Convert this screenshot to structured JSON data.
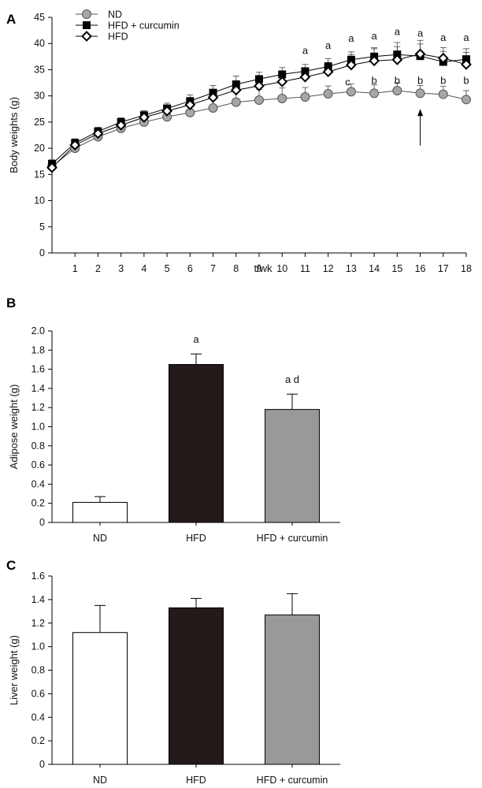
{
  "figure": {
    "panels": [
      "A",
      "B",
      "C"
    ]
  },
  "chart_data": [
    {
      "id": "A",
      "type": "line",
      "title": "",
      "xlabel": "t/wk",
      "ylabel": "Body weights (g)",
      "xlim": [
        0,
        18
      ],
      "ylim": [
        0,
        45
      ],
      "xticks": [
        1,
        2,
        3,
        4,
        5,
        6,
        7,
        8,
        9,
        10,
        11,
        12,
        13,
        14,
        15,
        16,
        17,
        18
      ],
      "yticks": [
        0,
        5,
        10,
        15,
        20,
        25,
        30,
        35,
        40,
        45
      ],
      "x": [
        0,
        1,
        2,
        3,
        4,
        5,
        6,
        7,
        8,
        9,
        10,
        11,
        12,
        13,
        14,
        15,
        16,
        17,
        18
      ],
      "legend": {
        "placement": "top-left"
      },
      "series": [
        {
          "name": "ND",
          "marker": "circle",
          "color": "#a6a6a6",
          "values": [
            16.5,
            20.0,
            22.2,
            23.8,
            25.0,
            26.0,
            26.8,
            27.7,
            28.8,
            29.2,
            29.5,
            29.8,
            30.4,
            30.8,
            30.5,
            31.0,
            30.5,
            30.3,
            29.3
          ],
          "errors": [
            1.0,
            1.5,
            1.4,
            1.4,
            1.6,
            1.6,
            1.6,
            1.8,
            2.0,
            2.0,
            2.0,
            1.8,
            1.5,
            1.5,
            1.6,
            1.5,
            1.5,
            1.5,
            1.7
          ]
        },
        {
          "name": "HFD + curcumin",
          "marker": "square",
          "color": "#000000",
          "values": [
            17.0,
            21.0,
            23.2,
            25.0,
            26.3,
            27.6,
            29.0,
            30.6,
            32.2,
            33.2,
            34.1,
            34.7,
            35.6,
            36.9,
            37.5,
            37.9,
            37.6,
            36.5,
            37.0
          ],
          "errors": [
            0.8,
            0.8,
            0.8,
            0.8,
            0.9,
            1.0,
            1.2,
            1.4,
            1.6,
            1.3,
            1.3,
            1.3,
            1.5,
            1.5,
            1.7,
            2.3,
            2.3,
            2.0,
            2.0
          ]
        },
        {
          "name": "HFD",
          "marker": "diamond",
          "color": "#000000",
          "values": [
            16.3,
            20.6,
            22.8,
            24.4,
            25.9,
            27.1,
            28.3,
            29.7,
            31.1,
            31.9,
            32.7,
            33.6,
            34.6,
            35.9,
            36.7,
            36.9,
            38.0,
            37.2,
            36.0
          ],
          "errors": [
            0.8,
            0.8,
            0.8,
            0.8,
            0.9,
            1.0,
            1.2,
            1.3,
            1.4,
            1.4,
            1.5,
            1.6,
            1.8,
            2.0,
            2.3,
            2.5,
            2.6,
            2.0,
            2.3
          ]
        }
      ],
      "annotations": [
        {
          "text": "a",
          "x": 11,
          "y": 38.0
        },
        {
          "text": "a",
          "x": 12,
          "y": 39.0
        },
        {
          "text": "a",
          "x": 13,
          "y": 40.3
        },
        {
          "text": "a",
          "x": 14,
          "y": 40.8
        },
        {
          "text": "a",
          "x": 15,
          "y": 41.6
        },
        {
          "text": "a",
          "x": 16,
          "y": 41.3
        },
        {
          "text": "a",
          "x": 17,
          "y": 40.5
        },
        {
          "text": "a",
          "x": 18,
          "y": 40.5
        },
        {
          "text": "c",
          "x": 12.85,
          "y": 32.0
        },
        {
          "text": "b",
          "x": 14,
          "y": 32.3
        },
        {
          "text": "b",
          "x": 15,
          "y": 32.3
        },
        {
          "text": "b",
          "x": 16,
          "y": 32.3
        },
        {
          "text": "b",
          "x": 17,
          "y": 32.3
        },
        {
          "text": "b",
          "x": 18,
          "y": 32.3
        }
      ],
      "arrow": {
        "x": 16,
        "y_from": 20.5,
        "y_to": 27.5
      }
    },
    {
      "id": "B",
      "type": "bar",
      "title": "",
      "xlabel": "",
      "ylabel": "Adipose weight (g)",
      "ylim": [
        0,
        2.0
      ],
      "yticks": [
        "0",
        "0.2",
        "0.4",
        "0.6",
        "0.8",
        "1.0",
        "1.2",
        "1.4",
        "1.6",
        "1.8",
        "2.0"
      ],
      "categories": [
        "ND",
        "HFD",
        "HFD + curcumin"
      ],
      "values": [
        0.21,
        1.65,
        1.18
      ],
      "errors": [
        0.06,
        0.11,
        0.16
      ],
      "colors": [
        "#ffffff",
        "#231a1a",
        "#999999"
      ],
      "annotations": [
        "",
        "a",
        "a d"
      ]
    },
    {
      "id": "C",
      "type": "bar",
      "title": "",
      "xlabel": "",
      "ylabel": "Liver weight (g)",
      "ylim": [
        0,
        1.6
      ],
      "yticks": [
        "0",
        "0.2",
        "0.4",
        "0.6",
        "0.8",
        "1.0",
        "1.2",
        "1.4",
        "1.6"
      ],
      "categories": [
        "ND",
        "HFD",
        "HFD + curcumin"
      ],
      "values": [
        1.12,
        1.33,
        1.27
      ],
      "errors": [
        0.23,
        0.08,
        0.18
      ],
      "colors": [
        "#ffffff",
        "#231a1a",
        "#999999"
      ],
      "annotations": [
        "",
        "",
        ""
      ]
    }
  ]
}
